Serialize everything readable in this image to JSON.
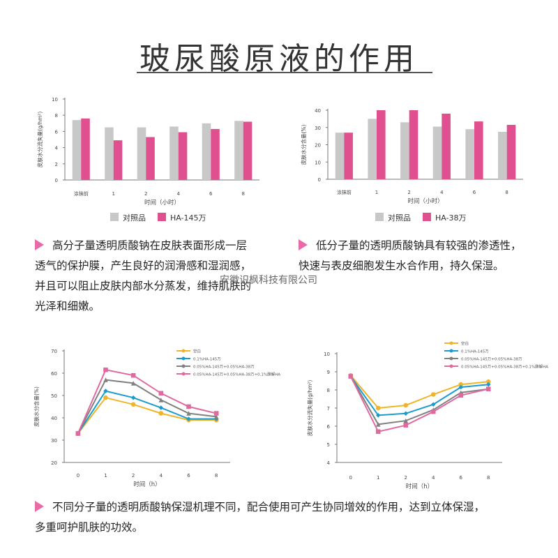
{
  "title": "玻尿酸原液的作用",
  "watermark": "安徽识枫科技有限公司",
  "paragraphs": {
    "left": [
      "高分子量透明质酸钠在皮肤表面形成一层",
      "透气的保护膜，产生良好的润滑感和湿润感，",
      "并且可以阻止皮肤内部水分蒸发，维持肌肤的",
      "光泽和细嫩。"
    ],
    "right": [
      "低分子量的透明质酸钠具有较强的渗透性，",
      "快速与表皮细胞发生水合作用，持久保湿。"
    ],
    "bottom": [
      "不同分子量的透明质酸钠保湿机理不同，配合使用可产生协同增效的作用，达到立体保湿，",
      "多重呵护肌肤的功效。"
    ]
  },
  "colors": {
    "accent": "#e86aa6",
    "control": "#c8c8c8",
    "ha": "#e0508f",
    "blank": "#f0b429",
    "ha145": "#1a9bd0",
    "mix2": "#808080",
    "mix3": "#e06aa0"
  },
  "chart_data": [
    {
      "type": "bar",
      "categories": [
        "涂抹前",
        "1",
        "2",
        "4",
        "6",
        "8"
      ],
      "xlabel": "时间（小时）",
      "ylabel": "皮肤水分流失量(g/hm²)",
      "ylim": [
        0,
        10
      ],
      "yticks": [
        0,
        2,
        4,
        6,
        8,
        10
      ],
      "series": [
        {
          "name": "对照品",
          "values": [
            7.4,
            6.5,
            6.5,
            6.6,
            7.0,
            7.3
          ]
        },
        {
          "name": "HA-145万",
          "values": [
            7.6,
            4.9,
            5.3,
            5.9,
            6.3,
            7.2
          ]
        }
      ],
      "legend": "bottom"
    },
    {
      "type": "bar",
      "categories": [
        "涂抹前",
        "1",
        "2",
        "4",
        "6",
        "8"
      ],
      "xlabel": "时间（小时）",
      "ylabel": "皮肤水分含量(%)",
      "ylim": [
        0,
        40
      ],
      "yticks": [
        0,
        10,
        20,
        30,
        40
      ],
      "series": [
        {
          "name": "对照品",
          "values": [
            27,
            35,
            33,
            30.5,
            29,
            27.5
          ]
        },
        {
          "name": "HA-38万",
          "values": [
            27,
            40,
            40,
            38,
            33.5,
            31.5
          ]
        }
      ],
      "legend": "bottom"
    },
    {
      "type": "line",
      "categories": [
        "0",
        "1",
        "2",
        "4",
        "6",
        "8"
      ],
      "xlabel": "时间（h）",
      "ylabel": "皮肤水分含量(%)",
      "ylim": [
        20,
        70
      ],
      "yticks": [
        20,
        30,
        40,
        50,
        60,
        70
      ],
      "series": [
        {
          "name": "空白",
          "values": [
            33,
            49,
            46,
            42,
            39,
            39
          ]
        },
        {
          "name": "0.1%HA-145万",
          "values": [
            33,
            52,
            49,
            44.5,
            39.5,
            39.5
          ]
        },
        {
          "name": "0.05%HA-145万+0.05%HA-38万",
          "values": [
            33,
            57,
            55.5,
            48,
            42,
            40.5
          ]
        },
        {
          "name": "0.05%HA-145万+0.05%HA-38万+0.1%酵解HA",
          "values": [
            33,
            61.5,
            59,
            51,
            45,
            42
          ]
        }
      ],
      "legend": "top-right"
    },
    {
      "type": "line",
      "categories": [
        "0",
        "1",
        "2",
        "4",
        "6",
        "8"
      ],
      "xlabel": "时间（h）",
      "ylabel": "皮肤水分流失量(g/hm²)",
      "ylim": [
        4,
        10
      ],
      "yticks": [
        4,
        5,
        6,
        7,
        8,
        9,
        10
      ],
      "series": [
        {
          "name": "空白",
          "values": [
            8.8,
            7.0,
            7.15,
            7.75,
            8.3,
            8.45
          ]
        },
        {
          "name": "0.1%HA-145万",
          "values": [
            8.75,
            6.6,
            6.7,
            7.2,
            8.15,
            8.3
          ]
        },
        {
          "name": "0.05%HA-145万+0.05%HA-38万",
          "values": [
            8.75,
            6.1,
            6.3,
            6.9,
            7.85,
            8.05
          ]
        },
        {
          "name": "0.05%HA-145万+0.05%HA-38万+0.1%酵解HA",
          "values": [
            8.75,
            5.7,
            6.05,
            6.8,
            7.7,
            8.05
          ]
        }
      ],
      "legend": "top-right"
    }
  ]
}
